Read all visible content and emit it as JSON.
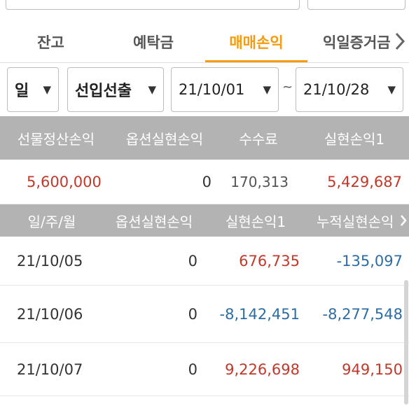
{
  "tabs": [
    {
      "label": "잔고"
    },
    {
      "label": "예탁금"
    },
    {
      "label": "매매손익"
    },
    {
      "label": "익일증거금"
    }
  ],
  "filters": {
    "period": "일",
    "type": "선입선출",
    "date_from": "21/10/01",
    "separator": "~",
    "date_to": "21/10/28"
  },
  "summary": {
    "headers": [
      "선물정산손익",
      "옵션실현손익",
      "수수료",
      "실현손익1"
    ],
    "values": [
      "5,600,000",
      "0",
      "170,313",
      "5,429,687"
    ]
  },
  "detail": {
    "headers": [
      "일/주/월",
      "옵션실현손익",
      "실현손익1",
      "누적실현손익"
    ],
    "rows": [
      {
        "date": "21/10/05",
        "option": "0",
        "realized": "676,735",
        "cumulative": "-135,097"
      },
      {
        "date": "21/10/06",
        "option": "0",
        "realized": "-8,142,451",
        "cumulative": "-8,277,548"
      },
      {
        "date": "21/10/07",
        "option": "0",
        "realized": "9,226,698",
        "cumulative": "949,150"
      }
    ]
  },
  "colors": {
    "accent": "#f39c12",
    "header_bg": "#b3b3b3",
    "positive": "#c0392b",
    "negative": "#2e6da4"
  }
}
